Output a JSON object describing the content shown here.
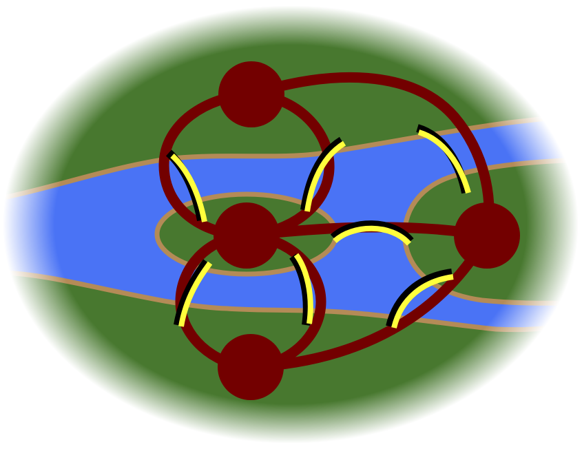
{
  "colors": {
    "background": "#ffffff",
    "land": "#48782f",
    "water": "#4a73f5",
    "bank": "#b48b57",
    "graph": "#730000",
    "bridge_fill": "#ffff3c",
    "bridge_outline": "#000000"
  },
  "graph": {
    "vertices": [
      "north-bank",
      "center-island",
      "south-bank",
      "east-island"
    ],
    "edges": [
      {
        "from": "north-bank",
        "to": "center-island",
        "route": "west"
      },
      {
        "from": "north-bank",
        "to": "center-island",
        "route": "east"
      },
      {
        "from": "center-island",
        "to": "south-bank",
        "route": "west"
      },
      {
        "from": "center-island",
        "to": "south-bank",
        "route": "east"
      },
      {
        "from": "north-bank",
        "to": "east-island"
      },
      {
        "from": "center-island",
        "to": "east-island"
      },
      {
        "from": "south-bank",
        "to": "east-island"
      }
    ],
    "bridge_count": 7
  }
}
